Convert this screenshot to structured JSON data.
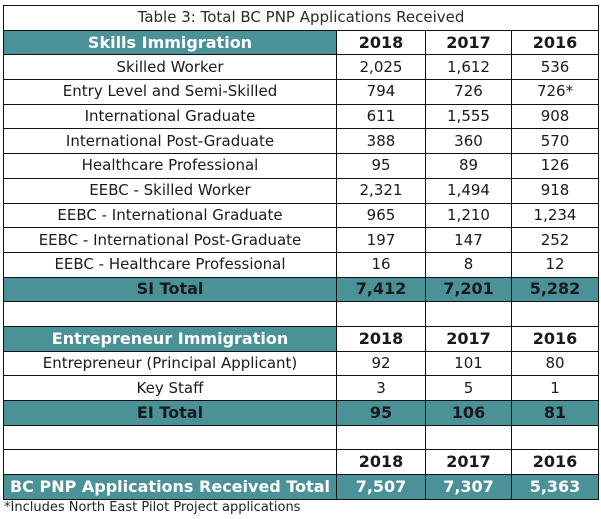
{
  "caption": "Table 3: Total BC PNP Applications Received",
  "skills": {
    "header": [
      "Skills Immigration",
      "2018",
      "2017",
      "2016"
    ],
    "rows": [
      [
        "Skilled Worker",
        "2,025",
        "1,612",
        "536"
      ],
      [
        "Entry Level and Semi-Skilled",
        "794",
        "726",
        "726*"
      ],
      [
        "International Graduate",
        "611",
        "1,555",
        "908"
      ],
      [
        "International Post-Graduate",
        "388",
        "360",
        "570"
      ],
      [
        "Healthcare Professional",
        "95",
        "89",
        "126"
      ],
      [
        "EEBC - Skilled Worker",
        "2,321",
        "1,494",
        "918"
      ],
      [
        "EEBC - International Graduate",
        "965",
        "1,210",
        "1,234"
      ],
      [
        "EEBC - International Post-Graduate",
        "197",
        "147",
        "252"
      ],
      [
        "EEBC - Healthcare Professional",
        "16",
        "8",
        "12"
      ]
    ],
    "total": [
      "SI Total",
      "7,412",
      "7,201",
      "5,282"
    ]
  },
  "entrepreneur": {
    "header": [
      "Entrepreneur Immigration",
      "2018",
      "2017",
      "2016"
    ],
    "rows": [
      [
        "Entrepreneur (Principal Applicant)",
        "92",
        "101",
        "80"
      ],
      [
        "Key Staff",
        "3",
        "5",
        "1"
      ]
    ],
    "total": [
      "EI Total",
      "95",
      "106",
      "81"
    ]
  },
  "grand": {
    "header": [
      "",
      "2018",
      "2017",
      "2016"
    ],
    "total": [
      "BC PNP Applications Received Total",
      "7,507",
      "7,307",
      "5,363"
    ]
  },
  "footnote": "*Includes North East Pilot Project applications",
  "colors": {
    "teal": "#4a9298",
    "border": "#111111"
  }
}
